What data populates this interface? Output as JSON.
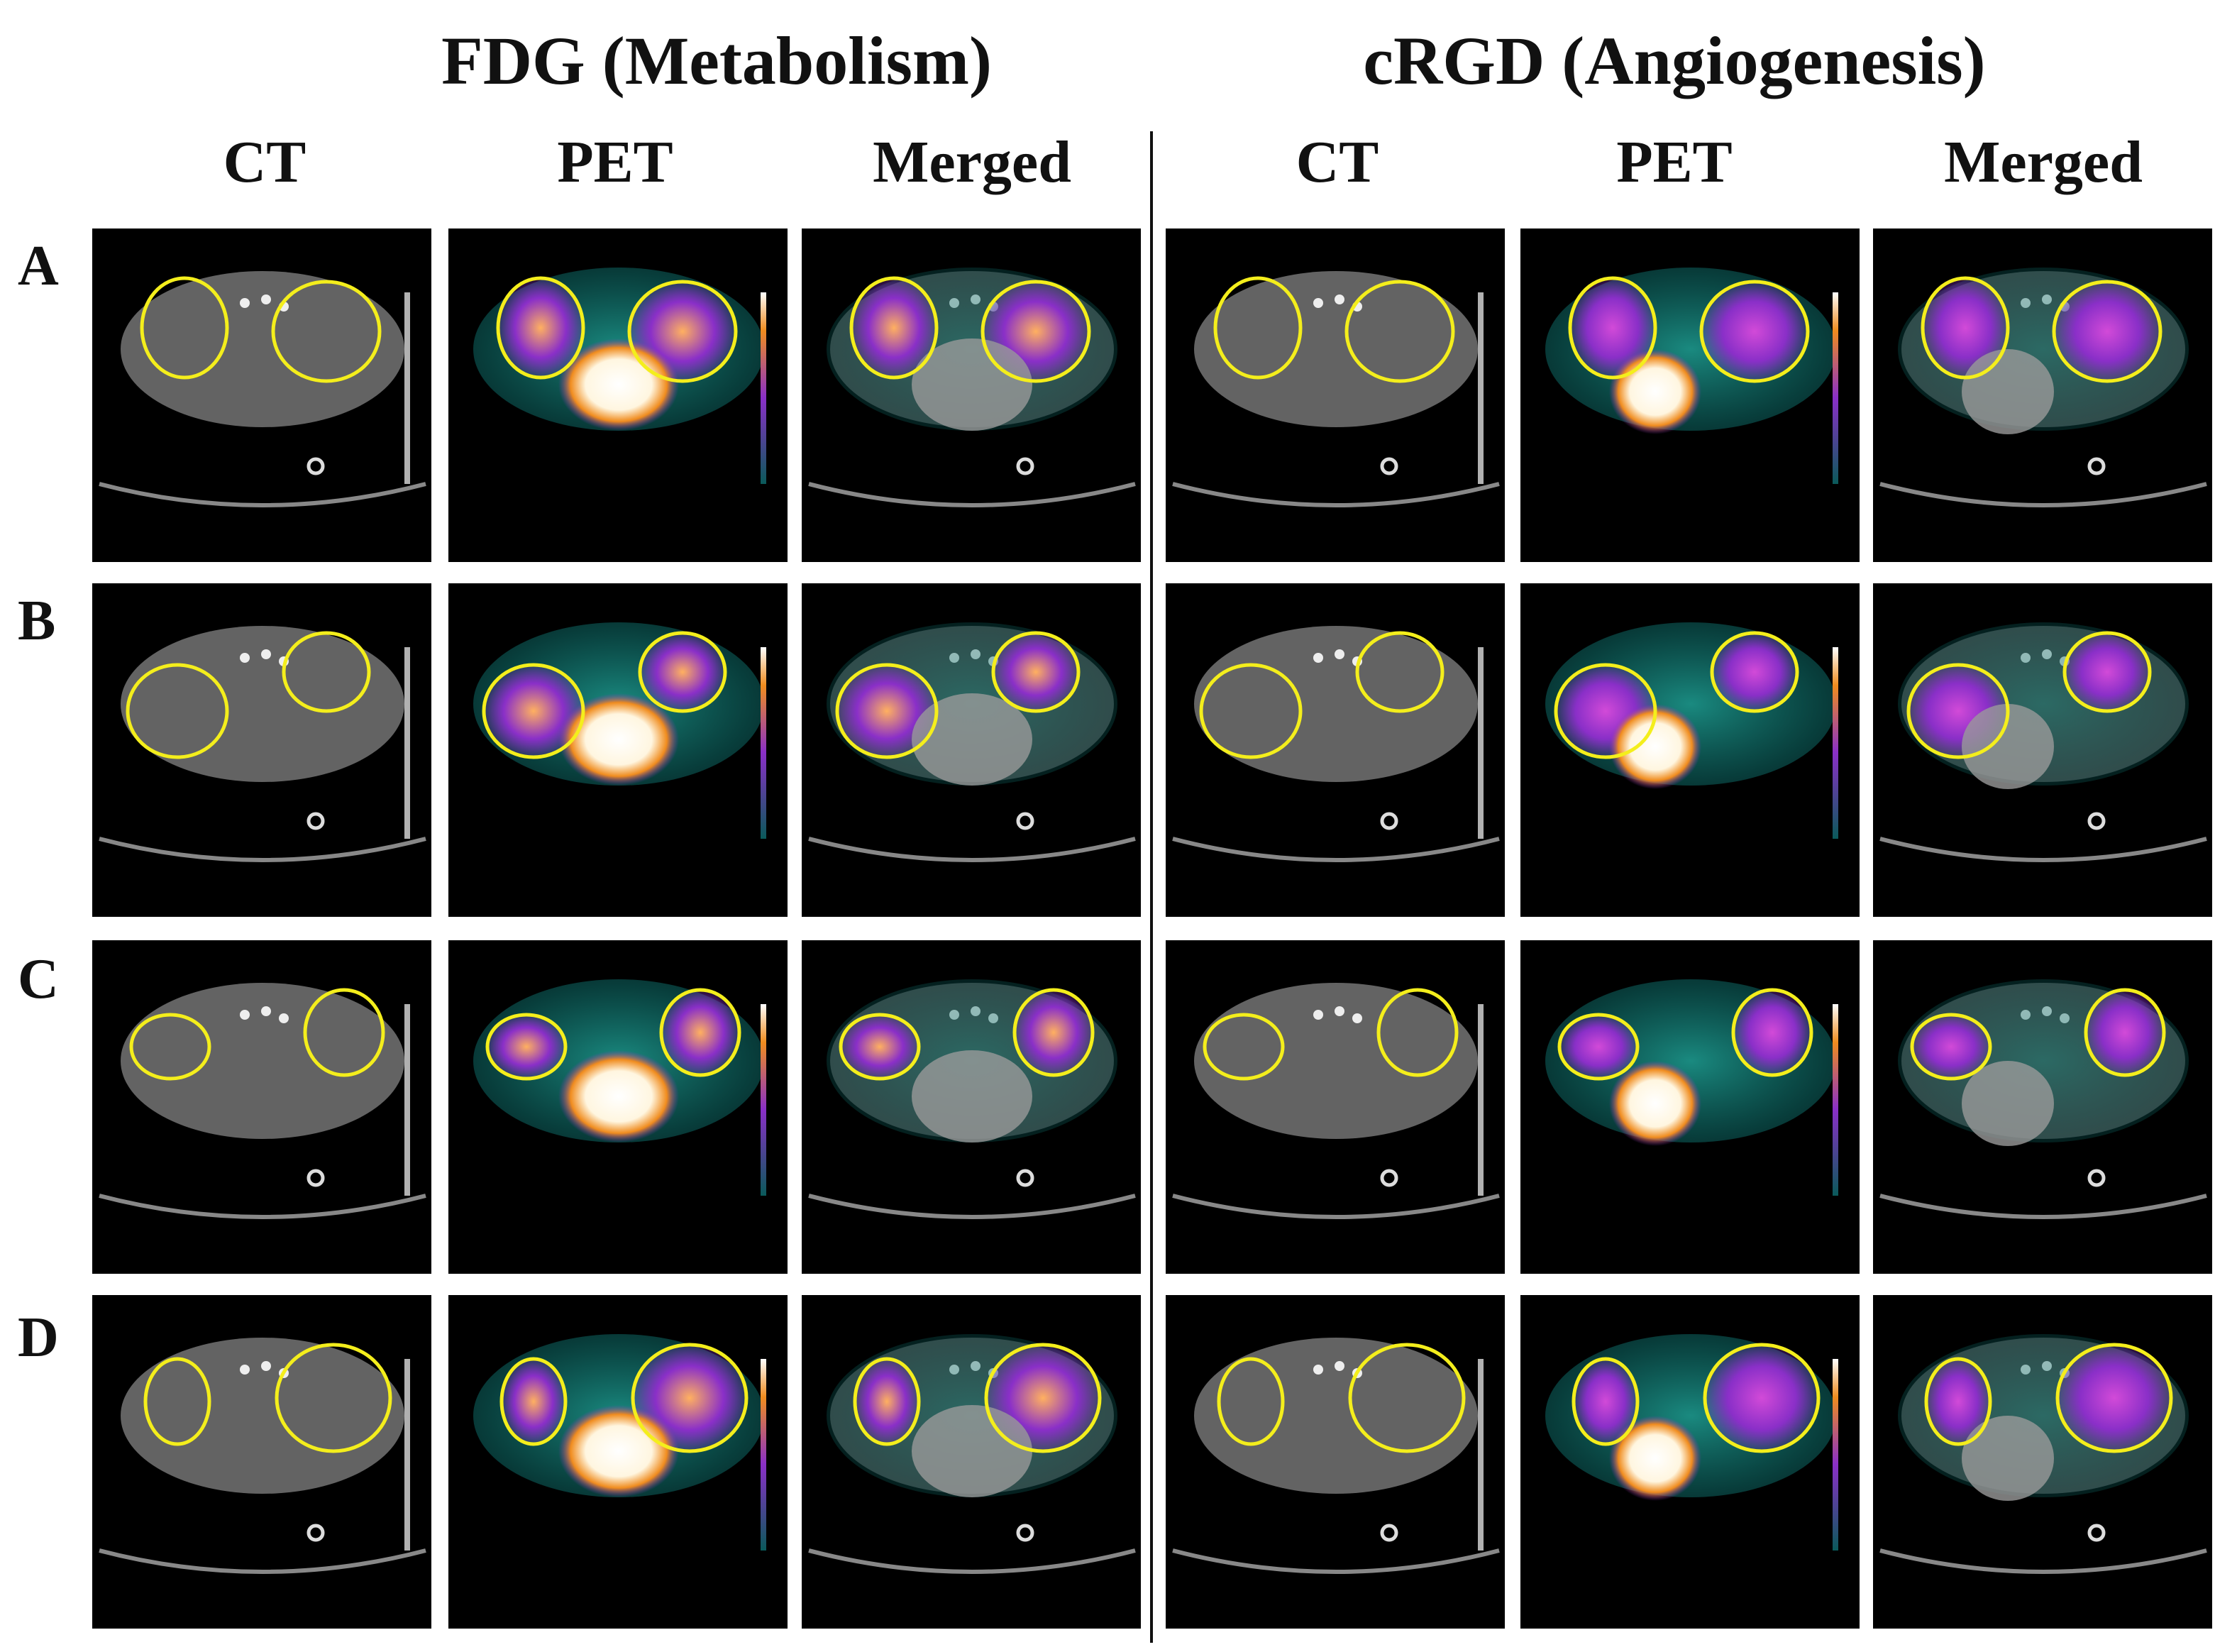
{
  "groups": [
    {
      "title": "FDG (Metabolism)"
    },
    {
      "title": "cRGD (Angiogenesis)"
    }
  ],
  "columns": [
    "CT",
    "PET",
    "Merged",
    "CT",
    "PET",
    "Merged"
  ],
  "rows": [
    "A",
    "B",
    "C",
    "D"
  ],
  "colors": {
    "roi_outline": "#f4ee1c",
    "ct_tissue": "#6e6e6e",
    "pet_background": "#0c5f5c",
    "pet_hot": "#ffffff",
    "pet_mid": "#f08c1e",
    "pet_low": "#8a2fc8",
    "divider": "#111111"
  },
  "panel_types": [
    "ct",
    "pet",
    "merged",
    "ct",
    "pet",
    "merged"
  ]
}
